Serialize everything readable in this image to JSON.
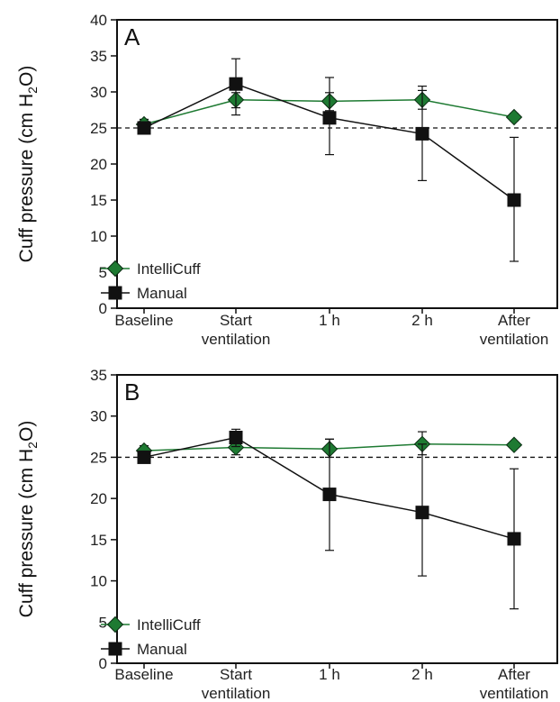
{
  "chart_data": [
    {
      "type": "line",
      "panel_label": "A",
      "ylabel": "Cuff pressure (cm H₂O)",
      "ylabel_main": "Cuff pressure (cm H",
      "ylabel_sub": "2",
      "ylabel_end": "O)",
      "ylim": [
        0,
        40
      ],
      "yticks": [
        0,
        5,
        10,
        15,
        20,
        25,
        30,
        35,
        40
      ],
      "categories": [
        [
          "Baseline"
        ],
        [
          "Start",
          "ventilation"
        ],
        [
          "1 h"
        ],
        [
          "2 h"
        ],
        [
          "After",
          "ventilation"
        ]
      ],
      "reference_line": 25,
      "legend_position": "bottom-left",
      "series": [
        {
          "name": "IntelliCuff",
          "marker": "diamond",
          "color": "#1e7a32",
          "values": [
            25.5,
            28.9,
            28.7,
            28.9,
            26.5
          ],
          "err_low": [
            24.8,
            27.8,
            27.4,
            27.6,
            26.0
          ],
          "err_high": [
            26.2,
            29.9,
            29.9,
            30.2,
            27.0
          ]
        },
        {
          "name": "Manual",
          "marker": "square",
          "color": "#111111",
          "values": [
            25.0,
            31.1,
            26.4,
            24.2,
            15.0
          ],
          "err_low": [
            24.5,
            26.8,
            21.3,
            17.7,
            6.5
          ],
          "err_high": [
            25.6,
            34.6,
            32.0,
            30.8,
            23.7
          ]
        }
      ]
    },
    {
      "type": "line",
      "panel_label": "B",
      "ylabel": "Cuff pressure (cm H₂O)",
      "ylabel_main": "Cuff pressure (cm H",
      "ylabel_sub": "2",
      "ylabel_end": "O)",
      "ylim": [
        0,
        35
      ],
      "yticks": [
        0,
        5,
        10,
        15,
        20,
        25,
        30,
        35
      ],
      "categories": [
        [
          "Baseline"
        ],
        [
          "Start",
          "ventilation"
        ],
        [
          "1 h"
        ],
        [
          "2 h"
        ],
        [
          "After",
          "ventilation"
        ]
      ],
      "reference_line": 25,
      "legend_position": "bottom-left",
      "series": [
        {
          "name": "IntelliCuff",
          "marker": "diamond",
          "color": "#1e7a32",
          "values": [
            25.8,
            26.2,
            26.0,
            26.6,
            26.5
          ],
          "err_low": [
            25.2,
            25.3,
            25.0,
            25.3,
            26.1
          ],
          "err_high": [
            26.4,
            27.0,
            27.2,
            28.1,
            26.9
          ]
        },
        {
          "name": "Manual",
          "marker": "square",
          "color": "#111111",
          "values": [
            25.0,
            27.4,
            20.5,
            18.3,
            15.1
          ],
          "err_low": [
            24.5,
            26.3,
            13.7,
            10.6,
            6.6
          ],
          "err_high": [
            25.6,
            28.4,
            27.2,
            26.6,
            23.6
          ]
        }
      ]
    }
  ]
}
